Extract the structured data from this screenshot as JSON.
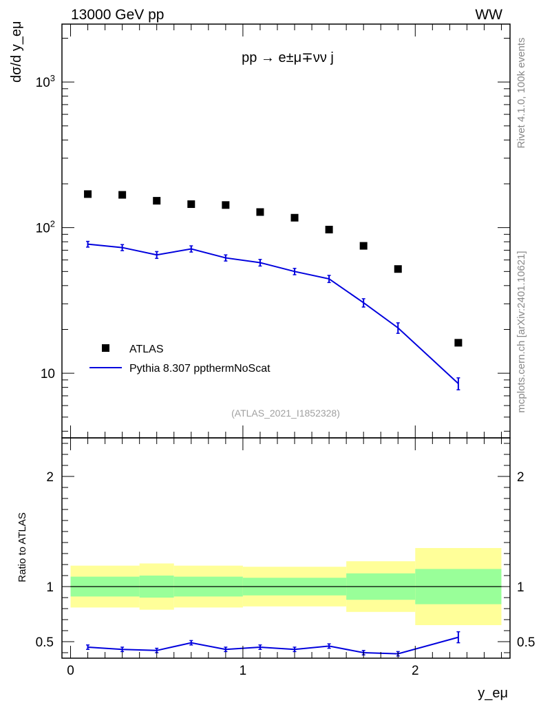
{
  "header": {
    "left": "13000 GeV pp",
    "right": "WW"
  },
  "side_labels": {
    "rivet": "Rivet 4.1.0,  100k events",
    "mcplots": "mcplots.cern.ch [arXiv:2401.10621]"
  },
  "process_label": "pp → e±μ∓νν j",
  "analysis_label": "(ATLAS_2021_I1852328)",
  "colors": {
    "data": "#000000",
    "mc": "#0000dd",
    "band_inner": "#99ff99",
    "band_outer": "#ffff99"
  },
  "chart_data": [
    {
      "type": "scatter",
      "title": "pp → e±μ∓νν j",
      "xlabel": "y_eμ",
      "ylabel": "dσ/d y_eμ",
      "yscale": "log",
      "xlim": [
        -0.05,
        2.55
      ],
      "ylim": [
        3.6,
        2500
      ],
      "ytick_labels": [
        "10",
        "10^2",
        "10^3"
      ],
      "legend_position": "lower-left",
      "series": [
        {
          "name": "ATLAS",
          "style": "markers",
          "x": [
            0.1,
            0.3,
            0.5,
            0.7,
            0.9,
            1.1,
            1.3,
            1.5,
            1.7,
            1.9,
            2.25
          ],
          "y": [
            170,
            168,
            153,
            145,
            143,
            128,
            117,
            97,
            75,
            52,
            16.2
          ]
        },
        {
          "name": "Pythia 8.307 ppthermNoScat",
          "style": "line",
          "x": [
            0.1,
            0.3,
            0.5,
            0.7,
            0.9,
            1.1,
            1.3,
            1.5,
            1.7,
            1.9,
            2.25
          ],
          "y": [
            77,
            73,
            65,
            71.5,
            62,
            57.5,
            50,
            44.5,
            30.5,
            20.5,
            8.5
          ],
          "err": [
            3.5,
            3.5,
            3.5,
            3.5,
            3,
            3,
            2.5,
            2.5,
            2,
            1.7,
            0.8
          ]
        }
      ]
    },
    {
      "type": "line",
      "ylabel": "Ratio to ATLAS",
      "xlabel": "y_eμ",
      "xlim": [
        -0.05,
        2.55
      ],
      "ylim": [
        0.35,
        2.35
      ],
      "yticks": [
        0.5,
        1,
        2
      ],
      "ytick_labels": [
        "0.5",
        "1",
        "2"
      ],
      "xticks": [
        0,
        1,
        2
      ],
      "xtick_labels": [
        "0",
        "1",
        "2"
      ],
      "bands": {
        "edges": [
          0,
          0.4,
          0.6,
          1.0,
          1.6,
          2.0,
          2.5
        ],
        "outer": [
          [
            0.81,
            1.19
          ],
          [
            0.79,
            1.21
          ],
          [
            0.81,
            1.19
          ],
          [
            0.82,
            1.18
          ],
          [
            0.77,
            1.23
          ],
          [
            0.65,
            1.35
          ]
        ],
        "inner": [
          [
            0.91,
            1.09
          ],
          [
            0.9,
            1.1
          ],
          [
            0.91,
            1.09
          ],
          [
            0.92,
            1.08
          ],
          [
            0.88,
            1.12
          ],
          [
            0.84,
            1.16
          ]
        ]
      },
      "reference": 1,
      "series": [
        {
          "name": "Pythia 8.307 ppthermNoScat",
          "x": [
            0.1,
            0.3,
            0.5,
            0.7,
            0.9,
            1.1,
            1.3,
            1.5,
            1.7,
            1.9,
            2.25
          ],
          "y": [
            0.45,
            0.43,
            0.42,
            0.49,
            0.43,
            0.45,
            0.43,
            0.46,
            0.4,
            0.39,
            0.54
          ],
          "err": [
            0.02,
            0.02,
            0.02,
            0.02,
            0.02,
            0.02,
            0.02,
            0.02,
            0.02,
            0.02,
            0.05
          ]
        }
      ]
    }
  ]
}
